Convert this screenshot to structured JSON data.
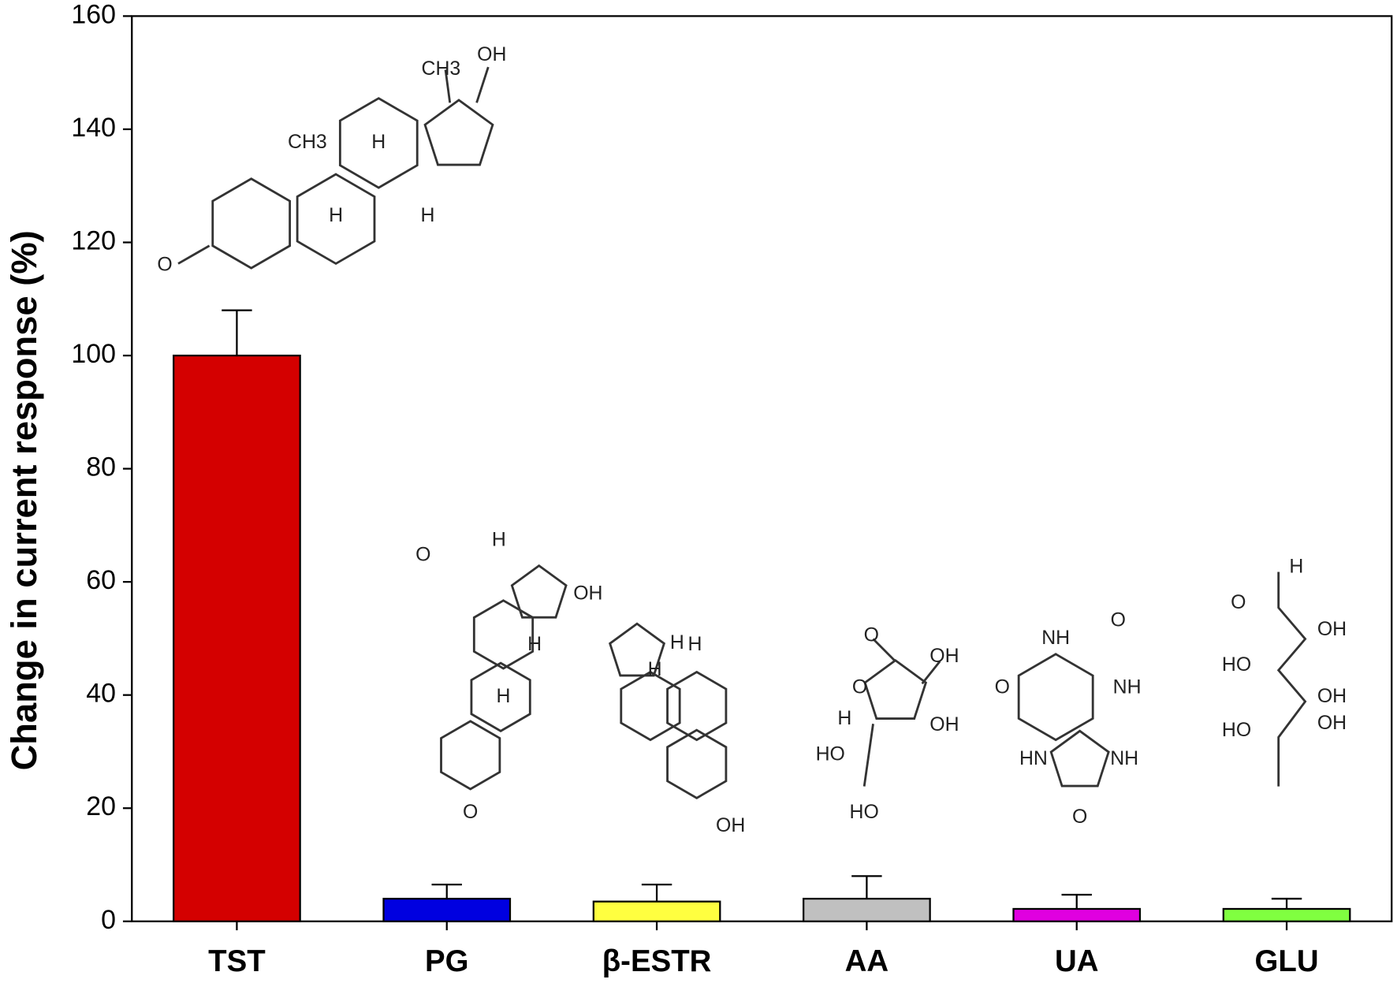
{
  "chart_data": {
    "type": "bar",
    "y_label": "Change in current response (%)",
    "categories": [
      "TST",
      "PG",
      "β-ESTR",
      "AA",
      "UA",
      "GLU"
    ],
    "values": [
      100,
      4,
      3.5,
      4,
      2.2,
      2.2
    ],
    "errors": [
      8,
      2.5,
      3,
      4,
      2.5,
      1.8
    ],
    "colors": [
      "#d40000",
      "#0000e0",
      "#ffff40",
      "#c0c0c0",
      "#e000e0",
      "#80ff40"
    ],
    "ylim": [
      0,
      160
    ],
    "yticks": [
      0,
      20,
      40,
      60,
      80,
      100,
      120,
      140,
      160
    ],
    "structure_labels": [
      [
        "O",
        "CH3",
        "CH3",
        "OH",
        "H",
        "H",
        "H"
      ],
      [
        "O",
        "H",
        "H",
        "H",
        "O"
      ],
      [
        "OH",
        "H",
        "H",
        "H",
        "OH"
      ],
      [
        "O",
        "O",
        "OH",
        "OH",
        "H",
        "HO",
        "HO"
      ],
      [
        "O",
        "NH",
        "O",
        "NH",
        "HN",
        "NH",
        "O"
      ],
      [
        "O",
        "H",
        "OH",
        "OH",
        "OH",
        "HO",
        "HO"
      ]
    ]
  }
}
